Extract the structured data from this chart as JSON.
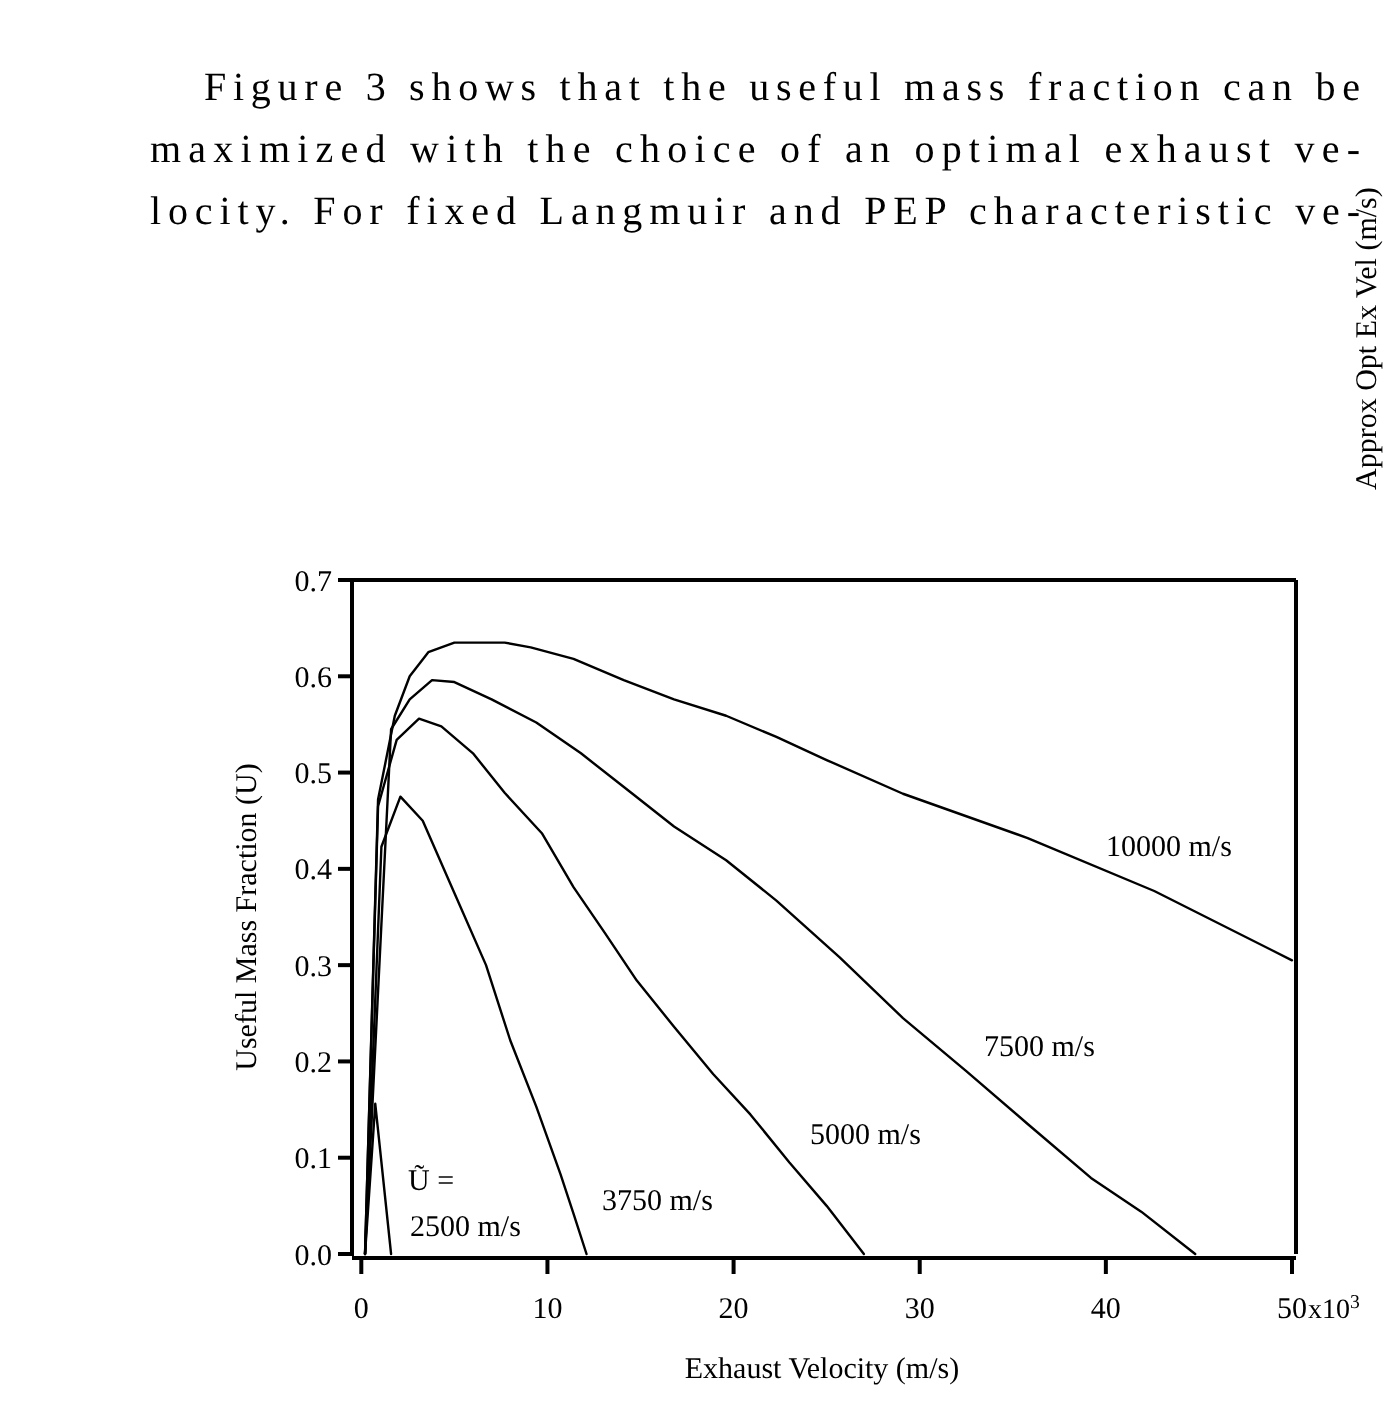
{
  "chart_data": {
    "type": "line",
    "xlabel": "Exhaust Velocity (m/s)",
    "ylabel": "Useful Mass Fraction (U)",
    "xlim": [
      -0.5,
      50
    ],
    "ylim": [
      0,
      0.7
    ],
    "xticks": [
      0,
      10,
      20,
      30,
      40,
      50
    ],
    "yticks": [
      {
        "value": 0,
        "label": "0.0"
      },
      0.1,
      0.2,
      0.3,
      0.4,
      0.5,
      0.6,
      0.7
    ],
    "grid": false,
    "legend": false,
    "marker": "none",
    "line_style": "solid",
    "series": [
      {
        "name": "2500 m/s",
        "color": "#000000",
        "x": [
          0.2,
          0.75,
          1.6
        ],
        "values": [
          0,
          0.156,
          0
        ]
      },
      {
        "name": "3750 m/s",
        "color": "#000000",
        "x": [
          0.2,
          1.08,
          2.1,
          3.3,
          5.0,
          6.7,
          8.0,
          9.4,
          10.7,
          11.4,
          12.1
        ],
        "values": [
          0,
          0.423,
          0.475,
          0.45,
          0.375,
          0.3,
          0.222,
          0.153,
          0.083,
          0.042,
          0
        ]
      },
      {
        "name": "5000 m/s",
        "color": "#000000",
        "x": [
          0.2,
          0.9,
          1.9,
          3.1,
          4.3,
          6.0,
          7.7,
          9.7,
          11.4,
          13.1,
          14.8,
          16.8,
          18.9,
          20.9,
          23,
          25,
          27
        ],
        "values": [
          0,
          0.465,
          0.534,
          0.556,
          0.548,
          0.52,
          0.479,
          0.437,
          0.381,
          0.333,
          0.284,
          0.236,
          0.187,
          0.145,
          0.095,
          0.05,
          0
        ]
      },
      {
        "name": "7500 m/s",
        "color": "#000000",
        "x": [
          0.2,
          1.6,
          2.6,
          3.8,
          5.0,
          7.0,
          9.4,
          11.8,
          14.5,
          16.8,
          19.6,
          22.3,
          25.7,
          29.1,
          32.5,
          35.8,
          39.2,
          41.9,
          44.8
        ],
        "values": [
          0,
          0.545,
          0.576,
          0.596,
          0.594,
          0.576,
          0.552,
          0.52,
          0.479,
          0.444,
          0.409,
          0.367,
          0.308,
          0.245,
          0.19,
          0.135,
          0.079,
          0.044,
          0
        ]
      },
      {
        "name": "10000 m/s",
        "color": "#000000",
        "x": [
          0.2,
          0.9,
          1.8,
          2.6,
          3.6,
          5.0,
          7.7,
          9.1,
          11.4,
          14.1,
          16.8,
          19.6,
          22.3,
          25,
          29.1,
          35.8,
          42.6,
          50
        ],
        "values": [
          0,
          0.472,
          0.559,
          0.6,
          0.625,
          0.635,
          0.635,
          0.63,
          0.618,
          0.596,
          0.576,
          0.559,
          0.537,
          0.513,
          0.478,
          0.432,
          0.377,
          0.305
        ]
      }
    ],
    "annotations": [
      "Figure 3 shows that the useful mass fraction can be",
      "maximized with the choice of an optimal exhaust ve-",
      "locity.  For fixed Langmuir and PEP characteristic ve-",
      "Approx Opt Ex Vel (m/s)",
      "Ũ =",
      "x10$^{3}$"
    ]
  }
}
